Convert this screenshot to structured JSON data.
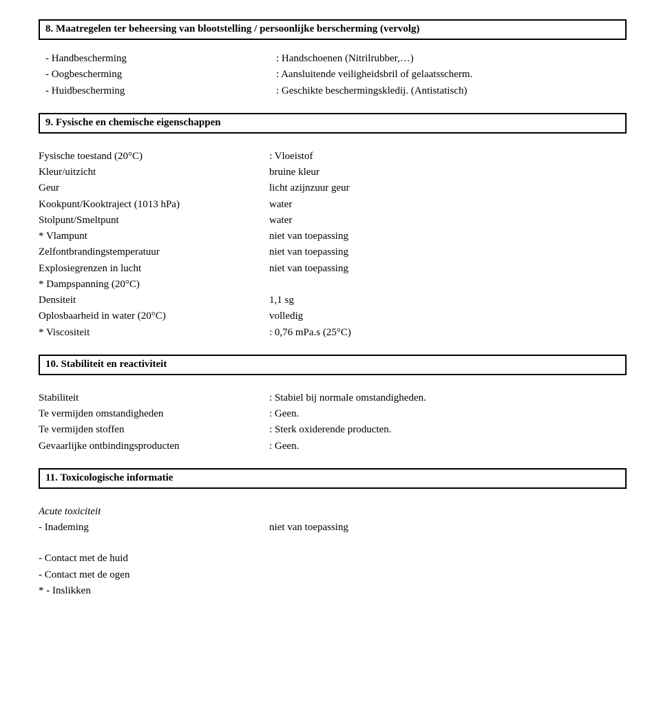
{
  "sections": {
    "s8": {
      "title": "8. Maatregelen ter beheersing van blootstelling / persoonlijke berscherming (vervolg)"
    },
    "s9": {
      "title": "9. Fysische en chemische eigenschappen"
    },
    "s10": {
      "title": "10. Stabiliteit en reactiviteit"
    },
    "s11": {
      "title": "11. Toxicologische informatie"
    }
  },
  "s8_rows": {
    "hand": {
      "label": "- Handbescherming",
      "value": ": Handschoenen (Nitrilrubber,…)"
    },
    "oog": {
      "label": "- Oogbescherming",
      "value": ": Aansluitende veiligheidsbril of gelaatsscherm."
    },
    "huid": {
      "label": "- Huidbescherming",
      "value": ": Geschikte beschermingskledij. (Antistatisch)"
    }
  },
  "s9_rows": {
    "r1": {
      "label": "Fysische toestand (20°C)",
      "value": ": Vloeistof"
    },
    "r2": {
      "label": "Kleur/uitzicht",
      "value": "bruine kleur"
    },
    "r3": {
      "label": "Geur",
      "value": "licht azijnzuur geur"
    },
    "r4": {
      "label": "Kookpunt/Kooktraject (1013 hPa)",
      "value": "water"
    },
    "r5": {
      "label": "Stolpunt/Smeltpunt",
      "value": "water",
      "value_font": "Comic Sans MS"
    },
    "r6": {
      "label": "* Vlampunt",
      "value": "niet van toepassing"
    },
    "r7": {
      "label": "Zelfontbrandingstemperatuur",
      "value": "niet van toepassing"
    },
    "r8": {
      "label": "Explosiegrenzen in lucht",
      "value": "niet van toepassing"
    },
    "r9": {
      "label": "* Dampspanning (20°C)",
      "value": ""
    },
    "r10": {
      "label": "Densiteit",
      "value": "1,1 sg"
    },
    "r11": {
      "label": "Oplosbaarheid in water (20°C)",
      "value": "volledig"
    },
    "r12": {
      "label": "* Viscositeit",
      "value": ": 0,76 mPa.s (25°C)"
    }
  },
  "s10_rows": {
    "r1": {
      "label": "Stabiliteit",
      "value": ": Stabiel bij normale omstandigheden."
    },
    "r2": {
      "label": "Te vermijden omstandigheden",
      "value": ": Geen."
    },
    "r3": {
      "label": "Te vermijden stoffen",
      "value": ": Sterk oxiderende producten."
    },
    "r4": {
      "label": "Gevaarlijke ontbindingsproducten",
      "value": ": Geen."
    }
  },
  "s11": {
    "acute": {
      "label": "Acute toxiciteit"
    },
    "inademing": {
      "label": " - Inademing",
      "value": "niet van toepassing"
    },
    "huid": {
      "label": " - Contact met de huid"
    },
    "ogen": {
      "label": " - Contact met de ogen"
    },
    "inslik": {
      "label": "* - Inslikken"
    }
  }
}
